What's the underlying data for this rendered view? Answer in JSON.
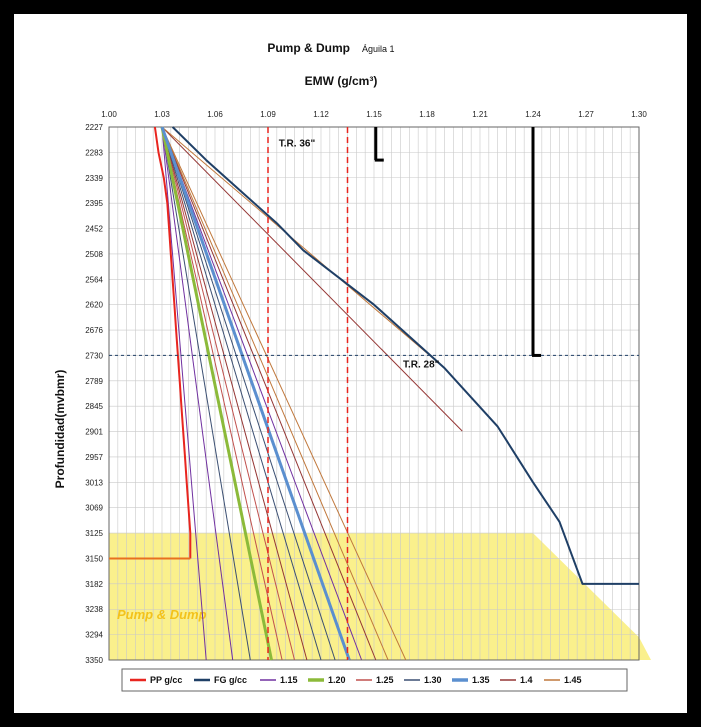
{
  "chart_data": {
    "type": "line",
    "title": "Pump & Dump",
    "subtitle": "Águila 1",
    "xlabel": "EMW (g/cm³)",
    "ylabel": "Profundidad(mvbmr)",
    "x_ticks": [
      "1.00",
      "1.03",
      "1.06",
      "1.09",
      "1.12",
      "1.15",
      "1.18",
      "1.21",
      "1.24",
      "1.27",
      "1.30"
    ],
    "y_ticks": [
      "2227",
      "2283",
      "2339",
      "2395",
      "2452",
      "2508",
      "2564",
      "2620",
      "2676",
      "2730",
      "2789",
      "2845",
      "2901",
      "2957",
      "3013",
      "3069",
      "3125",
      "3150",
      "3182",
      "3238",
      "3294",
      "3350"
    ],
    "xlim": [
      1.0,
      1.3
    ],
    "ylim": [
      2227,
      3350
    ],
    "y_inverted": true,
    "grid": true,
    "legend_position": "bottom",
    "series": [
      {
        "name": "PP g/cc",
        "color": "#e8251f",
        "width": 2,
        "points": [
          [
            1.026,
            2227
          ],
          [
            1.028,
            2283
          ],
          [
            1.031,
            2339
          ],
          [
            1.033,
            2395
          ],
          [
            1.034,
            2452
          ],
          [
            1.035,
            2508
          ],
          [
            1.036,
            2564
          ],
          [
            1.037,
            2620
          ],
          [
            1.038,
            2676
          ],
          [
            1.039,
            2730
          ],
          [
            1.04,
            2789
          ],
          [
            1.041,
            2845
          ],
          [
            1.042,
            2901
          ],
          [
            1.043,
            2957
          ],
          [
            1.044,
            3013
          ],
          [
            1.045,
            3069
          ],
          [
            1.046,
            3125
          ],
          [
            1.046,
            3150
          ]
        ]
      },
      {
        "name": "FG g/cc",
        "color": "#1f3f66",
        "width": 2,
        "points": [
          [
            1.036,
            2227
          ],
          [
            1.055,
            2300
          ],
          [
            1.075,
            2370
          ],
          [
            1.095,
            2440
          ],
          [
            1.11,
            2500
          ],
          [
            1.15,
            2620
          ],
          [
            1.19,
            2760
          ],
          [
            1.22,
            2890
          ],
          [
            1.24,
            3013
          ],
          [
            1.255,
            3100
          ],
          [
            1.268,
            3182
          ],
          [
            1.3,
            3182
          ]
        ]
      },
      {
        "name": "1.15",
        "color": "#7030a0",
        "width": 1,
        "points": [
          [
            1.03,
            2227
          ],
          [
            1.07,
            3350
          ]
        ]
      },
      {
        "name": "1.20",
        "color": "#8cba3a",
        "width": 3,
        "points": [
          [
            1.03,
            2227
          ],
          [
            1.092,
            3350
          ]
        ]
      },
      {
        "name": "1.25",
        "color": "#c0504d",
        "width": 1,
        "points": [
          [
            1.03,
            2227
          ],
          [
            1.105,
            3350
          ]
        ]
      },
      {
        "name": "1.30",
        "color": "#3b4f72",
        "width": 1,
        "points": [
          [
            1.03,
            2227
          ],
          [
            1.12,
            3350
          ]
        ]
      },
      {
        "name": "1.35",
        "color": "#5b8fcf",
        "width": 3,
        "points": [
          [
            1.03,
            2227
          ],
          [
            1.136,
            3350
          ]
        ]
      },
      {
        "name": "1.4",
        "color": "#943634",
        "width": 1,
        "points": [
          [
            1.03,
            2227
          ],
          [
            1.151,
            3350
          ]
        ]
      },
      {
        "name": "1.45",
        "color": "#c0783c",
        "width": 1,
        "points": [
          [
            1.03,
            2227
          ],
          [
            1.168,
            3350
          ]
        ]
      }
    ],
    "extra_lines": [
      {
        "color": "#7030a0",
        "width": 1,
        "points": [
          [
            1.03,
            2227
          ],
          [
            1.055,
            3350
          ]
        ]
      },
      {
        "color": "#3b4f72",
        "width": 1,
        "points": [
          [
            1.03,
            2227
          ],
          [
            1.08,
            3350
          ]
        ]
      },
      {
        "color": "#c0504d",
        "width": 1,
        "points": [
          [
            1.03,
            2227
          ],
          [
            1.098,
            3350
          ]
        ]
      },
      {
        "color": "#943634",
        "width": 1,
        "points": [
          [
            1.03,
            2227
          ],
          [
            1.112,
            3350
          ]
        ]
      },
      {
        "color": "#3b4f72",
        "width": 1,
        "points": [
          [
            1.03,
            2227
          ],
          [
            1.128,
            3350
          ]
        ]
      },
      {
        "color": "#7030a0",
        "width": 1,
        "points": [
          [
            1.03,
            2227
          ],
          [
            1.143,
            3350
          ]
        ]
      },
      {
        "color": "#c0783c",
        "width": 1,
        "points": [
          [
            1.03,
            2227
          ],
          [
            1.158,
            3350
          ]
        ]
      },
      {
        "color": "#943634",
        "width": 1,
        "points": [
          [
            1.03,
            2227
          ],
          [
            1.2,
            2900
          ]
        ]
      },
      {
        "color": "#c0783c",
        "width": 1,
        "points": [
          [
            1.03,
            2227
          ],
          [
            1.19,
            2760
          ]
        ]
      }
    ],
    "reference_lines": [
      {
        "x": 1.09,
        "color": "#e8251f",
        "style": "dashed"
      },
      {
        "x": 1.135,
        "color": "#e8251f",
        "style": "dashed"
      },
      {
        "y": 2730,
        "color": "#1f3f66",
        "style": "dotted"
      },
      {
        "y": 3150,
        "x_range": [
          1.0,
          1.046
        ],
        "color": "#e8701f",
        "style": "solid"
      }
    ],
    "casing_markers": [
      {
        "label": "T.R. 36\"",
        "x": 1.151,
        "y_top": 2227,
        "y_bottom": 2300
      },
      {
        "label": "T.R. 28\"",
        "x": 1.24,
        "y_top": 2227,
        "y_bottom": 2730
      }
    ],
    "zone": {
      "label": "Pump & Dump",
      "y_top": 3125,
      "y_bottom": 3350,
      "color": "#faf08c"
    }
  }
}
